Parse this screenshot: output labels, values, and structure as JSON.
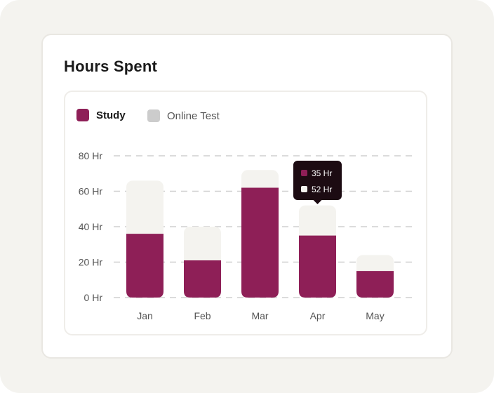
{
  "card": {
    "title": "Hours Spent"
  },
  "colors": {
    "study": "#8e1f57",
    "online_test": "#f4f3ef",
    "online_test_swatch": "#cccccc",
    "tooltip_bg": "#1c0b12"
  },
  "chart_data": {
    "type": "bar",
    "stacked": true,
    "categories": [
      "Jan",
      "Feb",
      "Mar",
      "Apr",
      "May"
    ],
    "series": [
      {
        "name": "Study",
        "values": [
          36,
          21,
          62,
          35,
          15
        ]
      },
      {
        "name": "Online Test",
        "values": [
          30,
          19,
          10,
          17,
          9
        ]
      }
    ],
    "yticks": [
      "0 Hr",
      "20 Hr",
      "40 Hr",
      "60 Hr",
      "80 Hr"
    ],
    "ylim": [
      0,
      80
    ],
    "grid": true,
    "legend": "top-left",
    "tooltip": {
      "category": "Apr",
      "lines": [
        "35 Hr",
        "52 Hr"
      ]
    }
  }
}
